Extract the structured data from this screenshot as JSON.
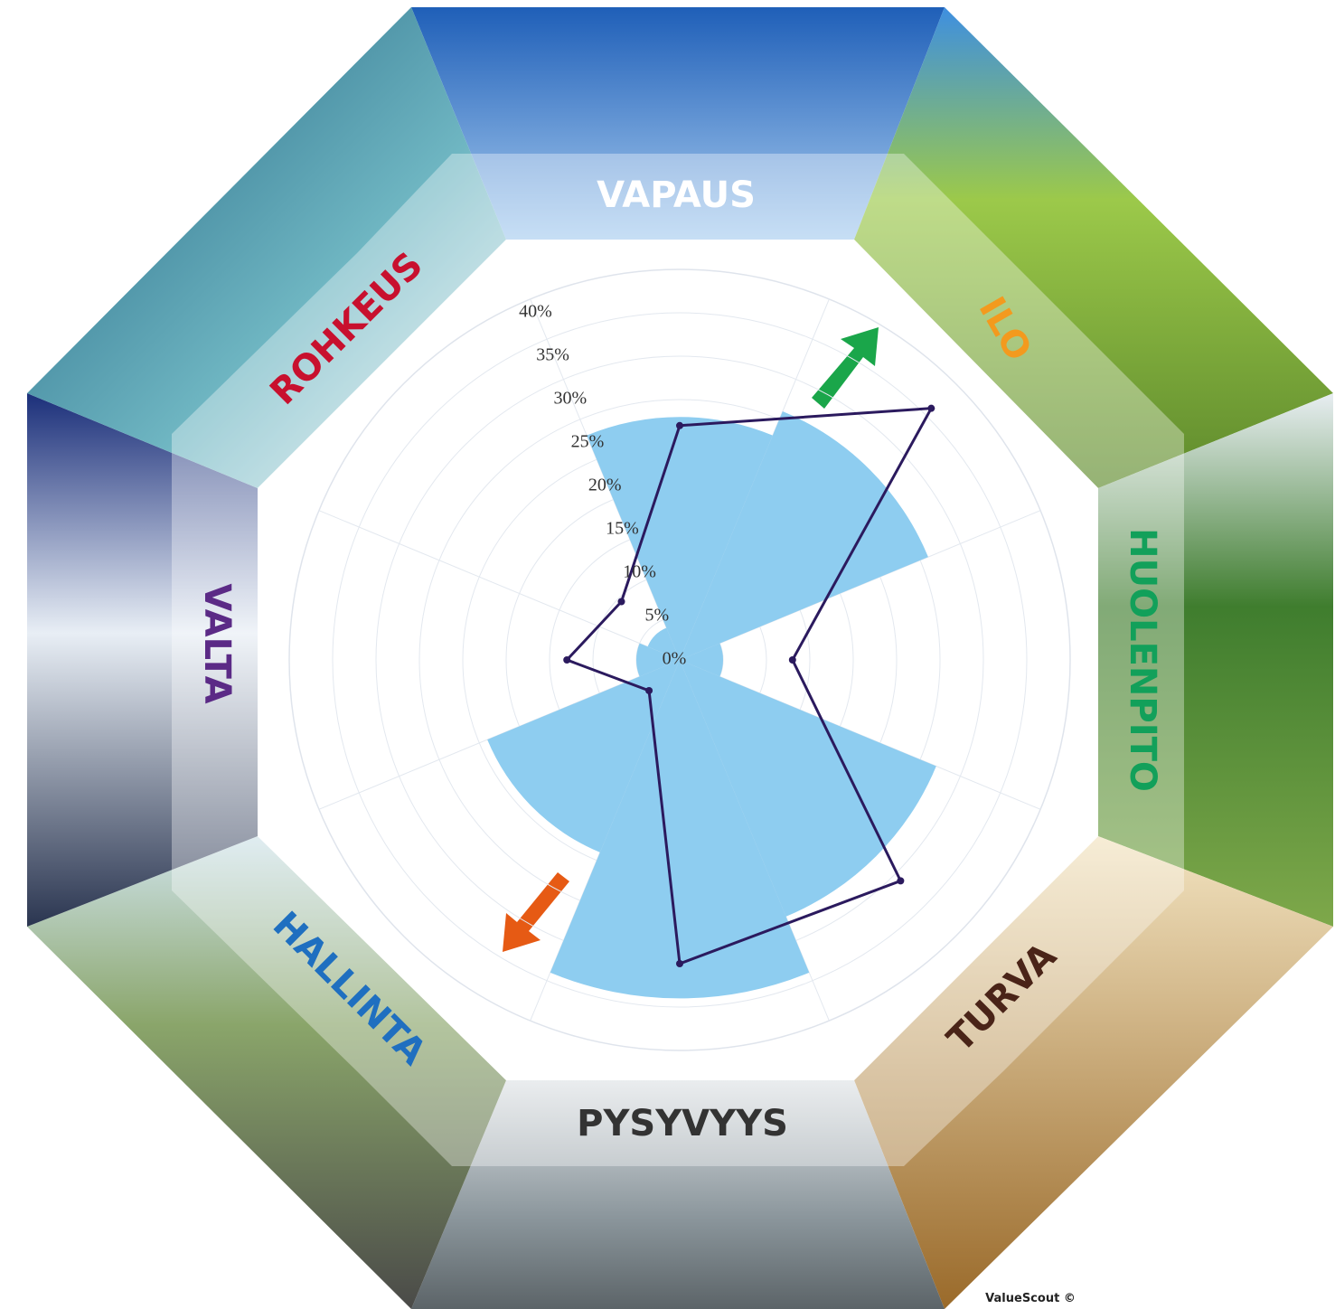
{
  "chart_data": {
    "type": "polar",
    "categories": [
      "VAPAUS",
      "ILO",
      "HUOLENPITO",
      "TURVA",
      "PYSYVYYS",
      "HALLINTA",
      "VALTA",
      "ROHKEUS"
    ],
    "label_colors": [
      "#ffffff",
      "#f39a1e",
      "#12a05a",
      "#4a2418",
      "#333333",
      "#1f6fc0",
      "#5b2a86",
      "#c8102e"
    ],
    "series": [
      {
        "type": "bar",
        "color": "#8ecdf0",
        "values": [
          28,
          31,
          5,
          32,
          39,
          24,
          5,
          4
        ]
      },
      {
        "type": "line",
        "color": "#2b1a5e",
        "values": [
          27,
          41,
          13,
          36,
          35,
          5,
          13,
          9.5
        ]
      }
    ],
    "rlim": [
      0,
      45
    ],
    "rticks": [
      {
        "value": 0,
        "label": "0%"
      },
      {
        "value": 5,
        "label": "5%"
      },
      {
        "value": 10,
        "label": "10%"
      },
      {
        "value": 15,
        "label": "15%"
      },
      {
        "value": 20,
        "label": "20%"
      },
      {
        "value": 25,
        "label": "25%"
      },
      {
        "value": 30,
        "label": "30%"
      },
      {
        "value": 35,
        "label": "35%"
      },
      {
        "value": 40,
        "label": "40%"
      }
    ],
    "grid": true,
    "credit": "ValueScout ©"
  }
}
